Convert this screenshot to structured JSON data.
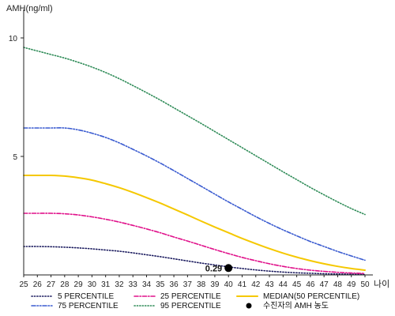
{
  "chart_data": {
    "type": "line",
    "ylabel": "AMH(ng/ml)",
    "xlabel": "나이",
    "xlim": [
      25,
      50
    ],
    "ylim": [
      0,
      11
    ],
    "x": [
      25,
      26,
      27,
      28,
      29,
      30,
      31,
      32,
      33,
      34,
      35,
      36,
      37,
      38,
      39,
      40,
      41,
      42,
      43,
      44,
      45,
      46,
      47,
      48,
      49,
      50
    ],
    "x_ticks": [
      "25",
      "26",
      "27",
      "28",
      "29",
      "30",
      "31",
      "32",
      "33",
      "34",
      "35",
      "36",
      "37",
      "38",
      "39",
      "40",
      "41",
      "42",
      "43",
      "44",
      "45",
      "46",
      "47",
      "48",
      "49",
      "50"
    ],
    "y_ticks": [
      "5",
      "10"
    ],
    "y_tick_values": [
      5,
      10
    ],
    "series": [
      {
        "name": "5 PERCENTILE",
        "color": "#1a1a5e",
        "style": "dotted",
        "values": [
          1.2,
          1.2,
          1.19,
          1.17,
          1.14,
          1.1,
          1.05,
          1.0,
          0.93,
          0.85,
          0.77,
          0.68,
          0.59,
          0.5,
          0.42,
          0.34,
          0.27,
          0.21,
          0.16,
          0.12,
          0.09,
          0.07,
          0.05,
          0.04,
          0.03,
          0.02
        ]
      },
      {
        "name": "25 PERCENTILE",
        "color": "#e0108a",
        "style": "dashdot",
        "values": [
          2.6,
          2.6,
          2.6,
          2.58,
          2.53,
          2.45,
          2.35,
          2.23,
          2.09,
          1.94,
          1.78,
          1.6,
          1.43,
          1.25,
          1.07,
          0.9,
          0.74,
          0.6,
          0.47,
          0.36,
          0.27,
          0.2,
          0.15,
          0.11,
          0.08,
          0.06
        ]
      },
      {
        "name": "MEDIAN(50 PERCENTILE)",
        "color": "#f5c800",
        "style": "solid",
        "values": [
          4.2,
          4.2,
          4.2,
          4.17,
          4.1,
          4.0,
          3.85,
          3.68,
          3.48,
          3.26,
          3.03,
          2.78,
          2.53,
          2.27,
          2.02,
          1.78,
          1.54,
          1.32,
          1.11,
          0.92,
          0.75,
          0.6,
          0.47,
          0.36,
          0.27,
          0.2
        ]
      },
      {
        "name": "75 PERCENTILE",
        "color": "#3a5bd0",
        "style": "dashdotdot",
        "values": [
          6.2,
          6.2,
          6.2,
          6.2,
          6.12,
          5.98,
          5.8,
          5.57,
          5.3,
          5.02,
          4.72,
          4.4,
          4.07,
          3.74,
          3.41,
          3.08,
          2.77,
          2.46,
          2.17,
          1.9,
          1.65,
          1.41,
          1.2,
          0.99,
          0.8,
          0.62
        ]
      },
      {
        "name": "95 PERCENTILE",
        "color": "#2e8b57",
        "style": "dotted",
        "values": [
          9.6,
          9.45,
          9.3,
          9.15,
          8.97,
          8.77,
          8.54,
          8.28,
          7.99,
          7.69,
          7.38,
          7.05,
          6.72,
          6.39,
          6.05,
          5.71,
          5.37,
          5.03,
          4.69,
          4.35,
          4.02,
          3.69,
          3.38,
          3.08,
          2.8,
          2.55
        ]
      }
    ],
    "marker": {
      "name": "수진자의 AMH 농도",
      "x": 40,
      "y": 0.29,
      "label": "0.29",
      "color": "#000000"
    }
  }
}
